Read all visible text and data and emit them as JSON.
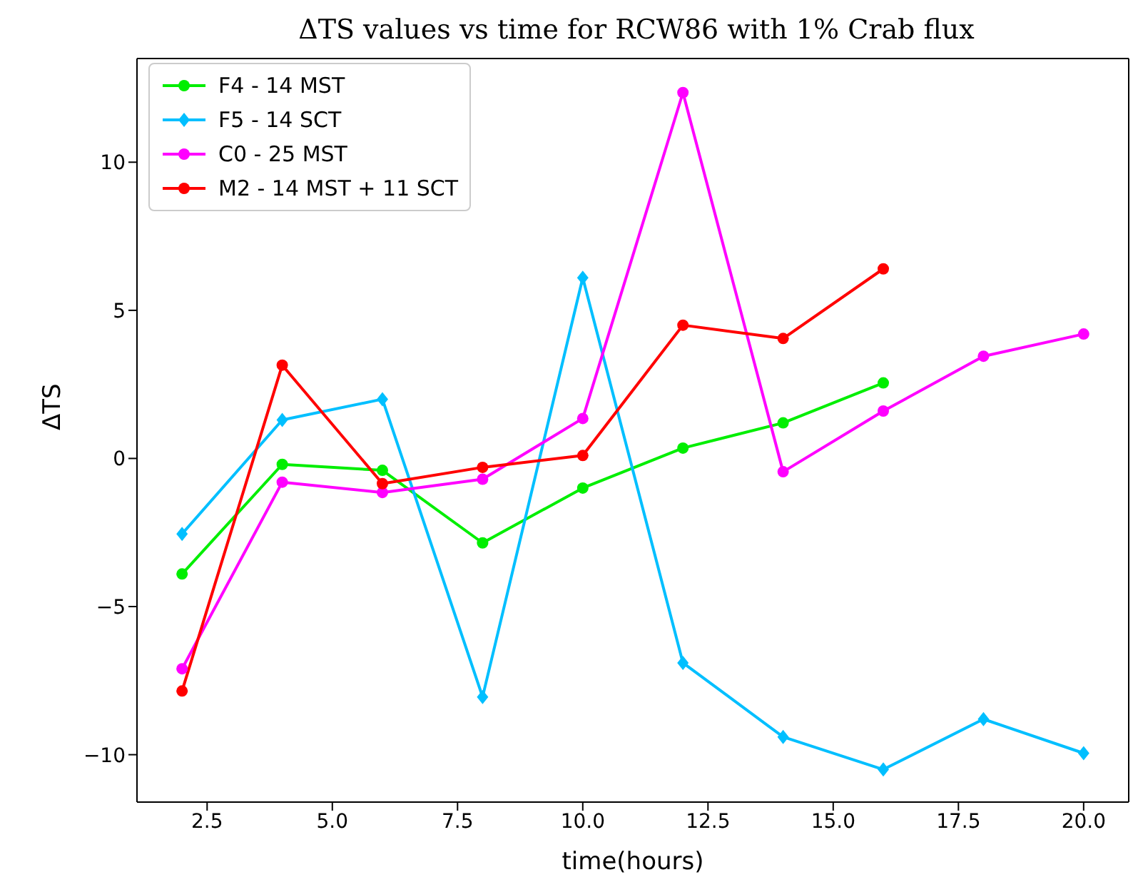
{
  "chart_data": {
    "type": "line",
    "title": "ΔTS values vs time for RCW86 with 1% Crab flux",
    "xlabel": "time(hours)",
    "ylabel": "ΔTS",
    "x": [
      2,
      4,
      6,
      8,
      10,
      12,
      14,
      16,
      18,
      20
    ],
    "series": [
      {
        "name": "F4 - 14 MST",
        "color": "#00ee00",
        "marker": "circle",
        "values": [
          -3.9,
          -0.2,
          -0.4,
          -2.85,
          -1.0,
          0.35,
          1.2,
          2.55,
          null,
          null
        ]
      },
      {
        "name": "F5 - 14 SCT",
        "color": "#00bfff",
        "marker": "diamond",
        "values": [
          -2.55,
          1.3,
          2.0,
          -8.05,
          6.1,
          -6.9,
          -9.4,
          -10.5,
          -8.8,
          -9.95
        ]
      },
      {
        "name": "C0 - 25 MST",
        "color": "#ff00ff",
        "marker": "circle",
        "values": [
          -7.1,
          -0.8,
          -1.15,
          -0.7,
          1.35,
          12.35,
          -0.45,
          1.6,
          3.45,
          4.2
        ]
      },
      {
        "name": "M2 - 14 MST + 11 SCT",
        "color": "#ff0000",
        "marker": "circle",
        "values": [
          -7.85,
          3.15,
          -0.85,
          -0.3,
          0.1,
          4.5,
          4.05,
          6.4,
          null,
          null
        ]
      }
    ],
    "xlim": [
      1.1,
      20.9
    ],
    "ylim": [
      -11.6,
      13.5
    ],
    "xticks": [
      {
        "value": 2.5,
        "label": "2.5"
      },
      {
        "value": 5,
        "label": "5.0"
      },
      {
        "value": 7.5,
        "label": "7.5"
      },
      {
        "value": 10,
        "label": "10.0"
      },
      {
        "value": 12.5,
        "label": "12.5"
      },
      {
        "value": 15,
        "label": "15.0"
      },
      {
        "value": 17.5,
        "label": "17.5"
      },
      {
        "value": 20,
        "label": "20.0"
      }
    ],
    "yticks": [
      {
        "value": -10,
        "label": "−10"
      },
      {
        "value": -5,
        "label": "−5"
      },
      0,
      5,
      10
    ],
    "grid": false,
    "legend": "top left",
    "line_style": "solid"
  }
}
